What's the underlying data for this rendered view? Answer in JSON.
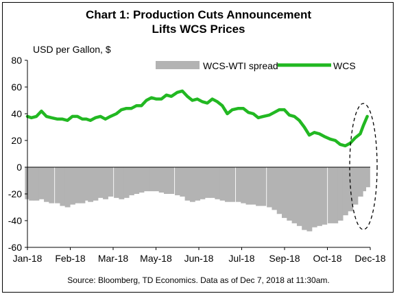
{
  "chart_data": {
    "type": "bar+line",
    "title": "Chart 1: Production Cuts Announcement",
    "subtitle": "Lifts WCS Prices",
    "ylabel": "USD per Gallon, $",
    "ylim": [
      -60,
      80
    ],
    "yticks": [
      80,
      60,
      40,
      20,
      0,
      -20,
      -40,
      -60
    ],
    "xtick_labels": [
      "Jan-18",
      "Feb-18",
      "Mar-18",
      "May-18",
      "Jun-18",
      "Jul-18",
      "Sep-18",
      "Oct-18",
      "Dec-18"
    ],
    "legend_position": "top-right",
    "grid": false,
    "series": [
      {
        "name": "WCS-WTI spread",
        "type": "bar",
        "color": "#b3b3b3",
        "x": [
          "2018-01-01",
          "2018-01-05",
          "2018-01-10",
          "2018-01-15",
          "2018-01-20",
          "2018-01-25",
          "2018-01-31",
          "2018-02-05",
          "2018-02-10",
          "2018-02-15",
          "2018-02-20",
          "2018-02-25",
          "2018-03-01",
          "2018-03-05",
          "2018-03-10",
          "2018-03-15",
          "2018-03-20",
          "2018-03-25",
          "2018-03-31",
          "2018-04-05",
          "2018-04-10",
          "2018-04-15",
          "2018-04-20",
          "2018-04-25",
          "2018-04-30",
          "2018-05-05",
          "2018-05-10",
          "2018-05-15",
          "2018-05-20",
          "2018-05-25",
          "2018-05-31",
          "2018-06-05",
          "2018-06-10",
          "2018-06-15",
          "2018-06-20",
          "2018-06-25",
          "2018-06-30",
          "2018-07-05",
          "2018-07-10",
          "2018-07-15",
          "2018-07-20",
          "2018-07-25",
          "2018-07-31",
          "2018-08-05",
          "2018-08-10",
          "2018-08-15",
          "2018-08-20",
          "2018-08-25",
          "2018-08-31",
          "2018-09-05",
          "2018-09-10",
          "2018-09-15",
          "2018-09-20",
          "2018-09-25",
          "2018-09-30",
          "2018-10-05",
          "2018-10-10",
          "2018-10-15",
          "2018-10-20",
          "2018-10-25",
          "2018-10-31",
          "2018-11-05",
          "2018-11-10",
          "2018-11-15",
          "2018-11-20",
          "2018-11-25",
          "2018-11-30",
          "2018-12-03",
          "2018-12-07"
        ],
        "values": [
          -24,
          -25,
          -25,
          -24,
          -26,
          -27,
          -27,
          -29,
          -30,
          -28,
          -27,
          -27,
          -25,
          -26,
          -25,
          -23,
          -24,
          -22,
          -23,
          -24,
          -23,
          -21,
          -20,
          -19,
          -18,
          -18,
          -18,
          -19,
          -20,
          -20,
          -21,
          -22,
          -25,
          -26,
          -25,
          -24,
          -23,
          -23,
          -24,
          -25,
          -26,
          -26,
          -26,
          -27,
          -28,
          -28,
          -29,
          -29,
          -30,
          -32,
          -35,
          -38,
          -40,
          -42,
          -44,
          -47,
          -48,
          -45,
          -44,
          -43,
          -42,
          -42,
          -40,
          -36,
          -33,
          -28,
          -22,
          -18,
          -15
        ]
      },
      {
        "name": "WCS",
        "type": "line",
        "color": "#22b822",
        "x": [
          "2018-01-01",
          "2018-01-05",
          "2018-01-10",
          "2018-01-15",
          "2018-01-20",
          "2018-01-25",
          "2018-01-31",
          "2018-02-05",
          "2018-02-10",
          "2018-02-15",
          "2018-02-20",
          "2018-02-25",
          "2018-03-01",
          "2018-03-05",
          "2018-03-10",
          "2018-03-15",
          "2018-03-20",
          "2018-03-25",
          "2018-03-31",
          "2018-04-05",
          "2018-04-10",
          "2018-04-15",
          "2018-04-20",
          "2018-04-25",
          "2018-04-30",
          "2018-05-05",
          "2018-05-10",
          "2018-05-15",
          "2018-05-20",
          "2018-05-25",
          "2018-05-31",
          "2018-06-05",
          "2018-06-10",
          "2018-06-15",
          "2018-06-20",
          "2018-06-25",
          "2018-06-30",
          "2018-07-05",
          "2018-07-10",
          "2018-07-15",
          "2018-07-20",
          "2018-07-25",
          "2018-07-31",
          "2018-08-05",
          "2018-08-10",
          "2018-08-15",
          "2018-08-20",
          "2018-08-25",
          "2018-08-31",
          "2018-09-05",
          "2018-09-10",
          "2018-09-15",
          "2018-09-20",
          "2018-09-25",
          "2018-09-30",
          "2018-10-05",
          "2018-10-10",
          "2018-10-15",
          "2018-10-20",
          "2018-10-25",
          "2018-10-31",
          "2018-11-05",
          "2018-11-10",
          "2018-11-15",
          "2018-11-20",
          "2018-11-25",
          "2018-11-30",
          "2018-12-03",
          "2018-12-07"
        ],
        "values": [
          38,
          37,
          38,
          42,
          38,
          37,
          36,
          36,
          35,
          38,
          38,
          36,
          36,
          35,
          37,
          38,
          36,
          38,
          40,
          43,
          44,
          44,
          46,
          46,
          50,
          52,
          51,
          51,
          54,
          53,
          56,
          57,
          53,
          50,
          51,
          49,
          48,
          51,
          49,
          46,
          40,
          43,
          44,
          44,
          41,
          40,
          37,
          38,
          39,
          41,
          43,
          43,
          39,
          38,
          35,
          30,
          24,
          26,
          25,
          23,
          21,
          20,
          17,
          16,
          18,
          22,
          25,
          31,
          38
        ]
      }
    ],
    "annotations": [
      "dashed ellipse highlighting late Nov–Dec 2018"
    ]
  },
  "source_text": "Source: Bloomberg, TD Economics. Data as of Dec 7, 2018 at 11:30am."
}
